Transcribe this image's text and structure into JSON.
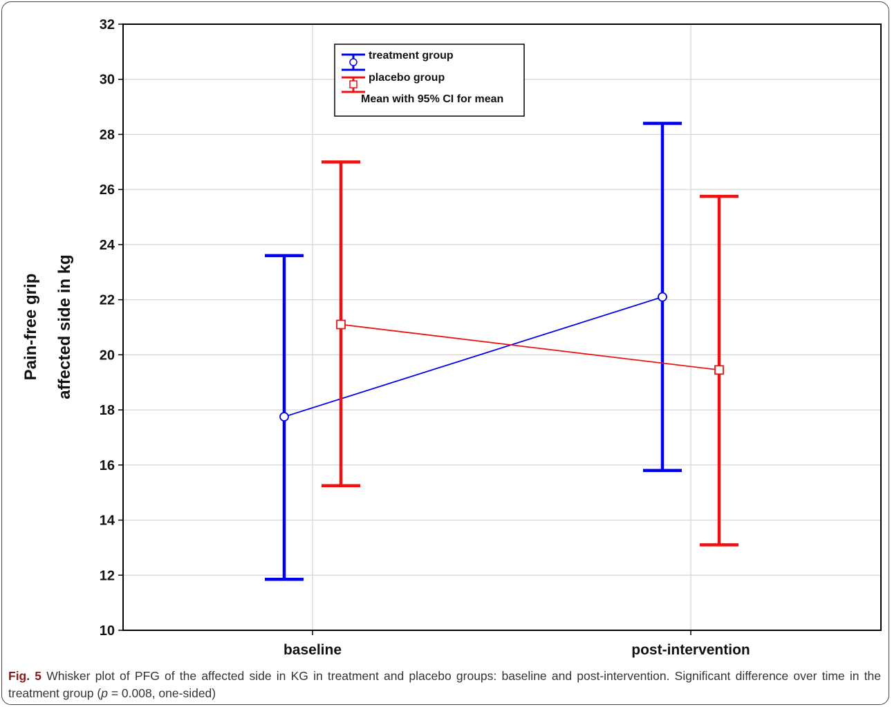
{
  "chart_data": {
    "type": "errorbar",
    "ylabel_lines": [
      "Pain-free grip",
      "affected side in kg"
    ],
    "ylim": [
      10,
      32
    ],
    "yticks": [
      10,
      12,
      14,
      16,
      18,
      20,
      22,
      24,
      26,
      28,
      30,
      32
    ],
    "categories": [
      "baseline",
      "post-intervention"
    ],
    "grid": true,
    "legend_position": "top-left",
    "legend_note": "Mean with 95% CI for mean",
    "series": [
      {
        "name": "treatment group",
        "color": "#0000ee",
        "marker": "circle",
        "mean": [
          17.75,
          22.1
        ],
        "ci_lower": [
          11.85,
          15.8
        ],
        "ci_upper": [
          23.6,
          28.4
        ]
      },
      {
        "name": "placebo group",
        "color": "#ee1111",
        "marker": "square",
        "mean": [
          21.1,
          19.45
        ],
        "ci_lower": [
          15.25,
          13.1
        ],
        "ci_upper": [
          27.0,
          25.75
        ]
      }
    ]
  },
  "caption": {
    "label": "Fig. 5",
    "text_before_p": " Whisker plot of PFG of the affected side in KG in treatment and placebo groups: baseline and post-intervention. Significant difference over time in the treatment group (",
    "p_symbol": "p",
    "text_after_p": " = 0.008, one-sided)"
  }
}
